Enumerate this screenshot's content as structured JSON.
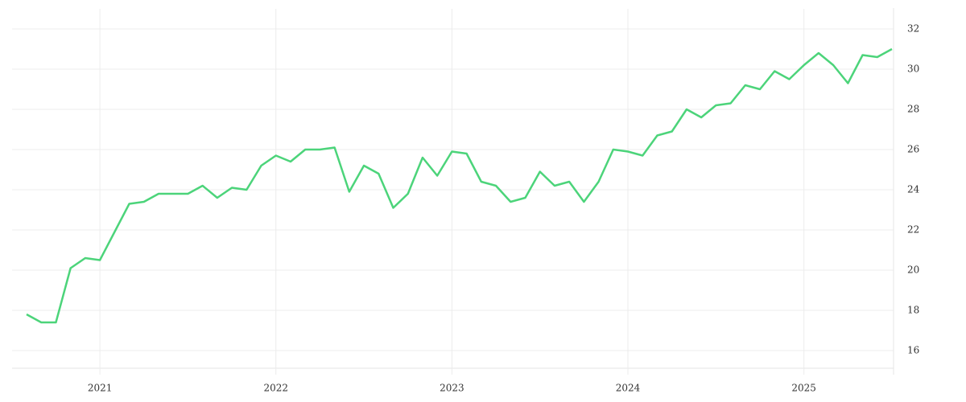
{
  "chart_data": {
    "type": "line",
    "categories": [
      null,
      null,
      null,
      null,
      null,
      "2021",
      null,
      null,
      null,
      null,
      null,
      null,
      null,
      null,
      null,
      null,
      null,
      "2022",
      null,
      null,
      null,
      null,
      null,
      null,
      null,
      null,
      null,
      null,
      null,
      "2023",
      null,
      null,
      null,
      null,
      null,
      null,
      null,
      null,
      null,
      null,
      null,
      "2024",
      null,
      null,
      null,
      null,
      null,
      null,
      null,
      null,
      null,
      null,
      null,
      "2025",
      null,
      null,
      null,
      null,
      null,
      null
    ],
    "values": [
      17.8,
      17.4,
      17.4,
      20.1,
      20.6,
      20.5,
      21.9,
      23.3,
      23.4,
      23.8,
      23.8,
      23.8,
      24.2,
      23.6,
      24.1,
      24.0,
      25.2,
      25.7,
      25.4,
      26.0,
      26.0,
      26.1,
      23.9,
      25.2,
      24.8,
      23.1,
      23.8,
      25.6,
      24.7,
      25.9,
      25.8,
      24.4,
      24.2,
      23.4,
      23.6,
      24.9,
      24.2,
      24.4,
      23.4,
      24.4,
      26.0,
      25.9,
      25.7,
      26.7,
      26.9,
      28.0,
      27.6,
      28.2,
      28.3,
      29.2,
      29.0,
      29.9,
      29.5,
      30.2,
      30.8,
      30.2,
      29.3,
      30.7,
      30.6,
      31.0
    ],
    "color": "#4cd47a",
    "ylim": [
      15,
      33
    ],
    "yticks": [
      16,
      18,
      20,
      22,
      24,
      26,
      28,
      30,
      32
    ],
    "grid": true
  }
}
